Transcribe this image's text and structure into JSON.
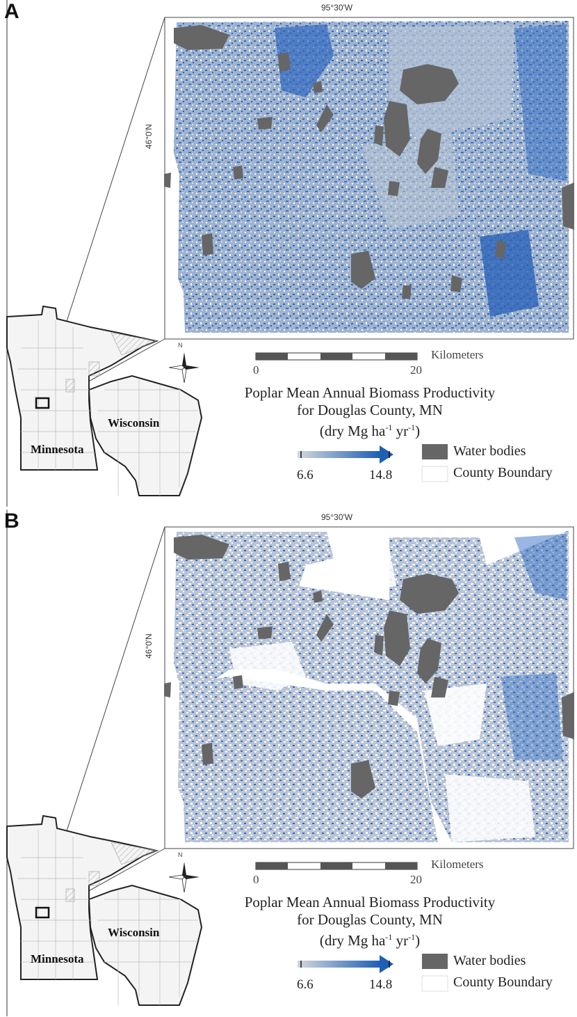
{
  "panels": [
    {
      "letter": "A",
      "lon_label": "95°30'W",
      "lat_label": "46°0'N",
      "scale": {
        "unit": "Kilometers",
        "start": "0",
        "end": "20"
      },
      "north_label": "N",
      "legend": {
        "title_line1": "Poplar Mean Annual Biomass Productivity",
        "title_line2": "for Douglas County, MN",
        "units_prefix": "(dry Mg ha",
        "units_exp1": "-1",
        "units_mid": " yr",
        "units_exp2": "-1",
        "units_suffix": ")",
        "ramp_min": "6.6",
        "ramp_max": "14.8",
        "water_label": "Water bodies",
        "boundary_label": "County Boundary"
      },
      "inset": {
        "state1": "Minnesota",
        "state2": "Wisconsin"
      }
    },
    {
      "letter": "B",
      "lon_label": "95°30'W",
      "lat_label": "46°0'N",
      "scale": {
        "unit": "Kilometers",
        "start": "0",
        "end": "20"
      },
      "north_label": "N",
      "legend": {
        "title_line1": "Poplar Mean Annual Biomass Productivity",
        "title_line2": "for Douglas County, MN",
        "units_prefix": "(dry Mg ha",
        "units_exp1": "-1",
        "units_mid": " yr",
        "units_exp2": "-1",
        "units_suffix": ")",
        "ramp_min": "6.6",
        "ramp_max": "14.8",
        "water_label": "Water bodies",
        "boundary_label": "County Boundary"
      },
      "inset": {
        "state1": "Minnesota",
        "state2": "Wisconsin"
      }
    }
  ],
  "colors": {
    "water": "#666666",
    "ramp_low": "#c8ccd2",
    "ramp_high": "#1f5fb4",
    "map_base_a": "#9db0cc",
    "map_base_b": "#ffffff"
  }
}
